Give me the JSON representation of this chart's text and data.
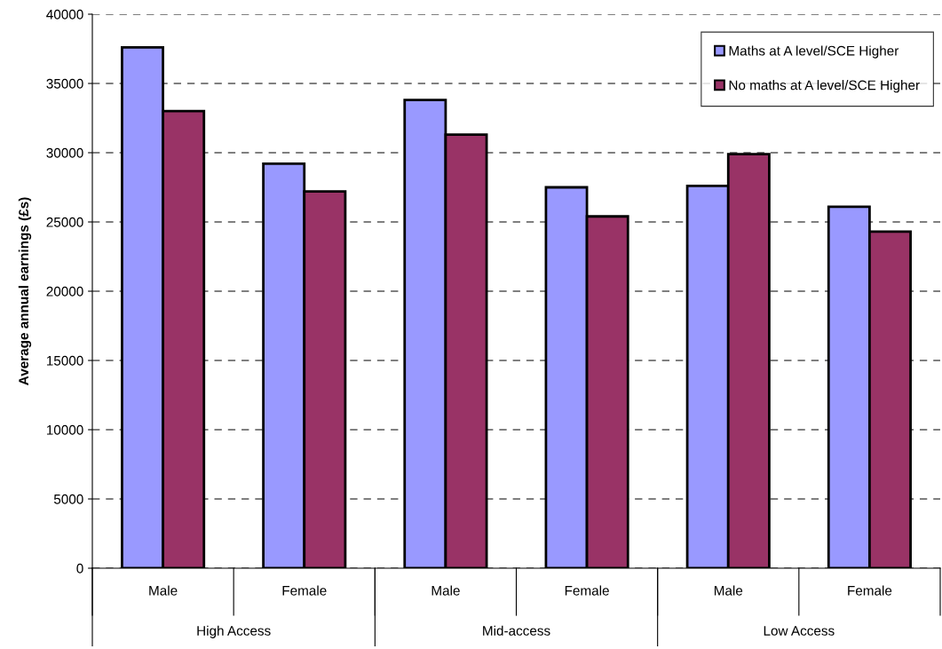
{
  "chart_data": {
    "type": "bar",
    "ylabel": "Average annual earnings (£s)",
    "categories": [
      "Male",
      "Female",
      "Male",
      "Female",
      "Male",
      "Female"
    ],
    "annotations": [
      "High Access",
      "Mid-access",
      "Low Access"
    ],
    "series": [
      {
        "name": "Maths at A level/SCE Higher",
        "color": "#9999ff",
        "values": [
          37600,
          29200,
          33800,
          27500,
          27600,
          26100
        ]
      },
      {
        "name": "No maths at A level/SCE Higher",
        "color": "#993366",
        "values": [
          33000,
          27200,
          31300,
          25400,
          29900,
          24300
        ]
      }
    ],
    "ylim": [
      0,
      40000
    ],
    "yticks": [
      0,
      5000,
      10000,
      15000,
      20000,
      25000,
      30000,
      35000,
      40000
    ],
    "grid": "y",
    "legend": "top right"
  }
}
